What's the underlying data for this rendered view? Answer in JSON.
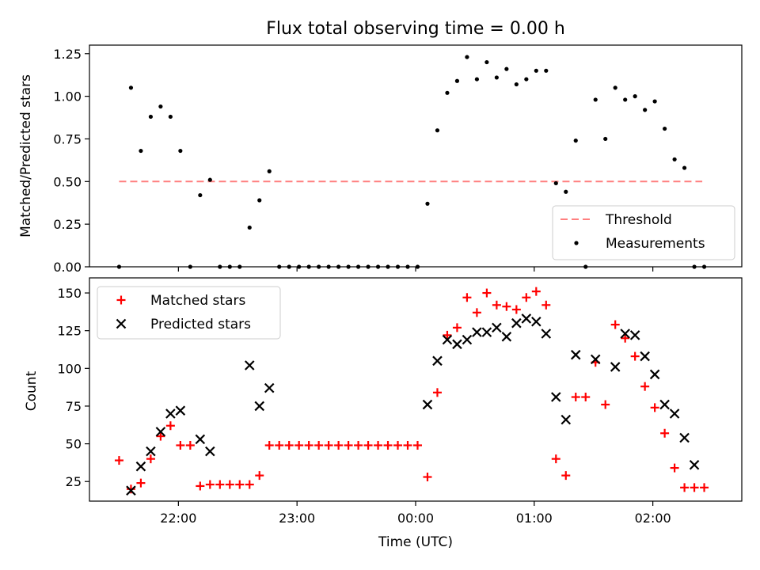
{
  "figure": {
    "title": "Flux total observing time = 0.00 h"
  },
  "chart_data": [
    {
      "type": "scatter",
      "ylabel": "Matched/Predicted stars",
      "ylim": [
        0,
        1.3
      ],
      "xlim_hours": [
        21.25,
        2.75
      ],
      "yticks": [
        {
          "v": 0,
          "label": "0.00"
        },
        {
          "v": 0.25,
          "label": "0.25"
        },
        {
          "v": 0.5,
          "label": "0.50"
        },
        {
          "v": 0.75,
          "label": "0.75"
        },
        {
          "v": 1.0,
          "label": "1.00"
        },
        {
          "v": 1.25,
          "label": "1.25"
        }
      ],
      "threshold": {
        "name": "Threshold",
        "value": 0.5,
        "x_start": "21:30",
        "x_end": "02:25",
        "color": "#ff7f7f"
      },
      "measurements": {
        "name": "Measurements",
        "color": "#000000",
        "x": [
          "21:30",
          "21:36",
          "21:41",
          "21:46",
          "21:51",
          "21:56",
          "22:01",
          "22:06",
          "22:11",
          "22:16",
          "22:21",
          "22:26",
          "22:31",
          "22:36",
          "22:41",
          "22:46",
          "22:51",
          "22:56",
          "23:01",
          "23:06",
          "23:11",
          "23:16",
          "23:21",
          "23:26",
          "23:31",
          "23:36",
          "23:41",
          "23:46",
          "23:51",
          "23:56",
          "00:01",
          "00:06",
          "00:11",
          "00:16",
          "00:21",
          "00:26",
          "00:31",
          "00:36",
          "00:41",
          "00:46",
          "00:51",
          "00:56",
          "01:01",
          "01:06",
          "01:11",
          "01:16",
          "01:21",
          "01:26",
          "01:31",
          "01:36",
          "01:41",
          "01:46",
          "01:51",
          "01:56",
          "02:01",
          "02:06",
          "02:11",
          "02:16",
          "02:21",
          "02:26"
        ],
        "y": [
          0.0,
          1.05,
          0.68,
          0.88,
          0.94,
          0.88,
          0.68,
          0.0,
          0.42,
          0.51,
          0.0,
          0.0,
          0.0,
          0.23,
          0.39,
          0.56,
          0.0,
          0.0,
          0.0,
          0.0,
          0.0,
          0.0,
          0.0,
          0.0,
          0.0,
          0.0,
          0.0,
          0.0,
          0.0,
          0.0,
          0.0,
          0.37,
          0.8,
          1.02,
          1.09,
          1.23,
          1.1,
          1.2,
          1.11,
          1.16,
          1.07,
          1.1,
          1.15,
          1.15,
          0.49,
          0.44,
          0.74,
          0.0,
          0.98,
          0.75,
          1.05,
          0.98,
          1.0,
          0.92,
          0.97,
          0.81,
          0.63,
          0.58,
          0.0,
          0.0
        ]
      },
      "legend": {
        "placement": "lower-right"
      }
    },
    {
      "type": "scatter",
      "xlabel": "Time (UTC)",
      "ylabel": "Count",
      "ylim": [
        12,
        160
      ],
      "xlim_hours": [
        21.25,
        2.75
      ],
      "yticks": [
        {
          "v": 25,
          "label": "25"
        },
        {
          "v": 50,
          "label": "50"
        },
        {
          "v": 75,
          "label": "75"
        },
        {
          "v": 100,
          "label": "100"
        },
        {
          "v": 125,
          "label": "125"
        },
        {
          "v": 150,
          "label": "150"
        }
      ],
      "xticks": [
        {
          "t": "22:00",
          "label": "22:00"
        },
        {
          "t": "23:00",
          "label": "23:00"
        },
        {
          "t": "00:00",
          "label": "00:00"
        },
        {
          "t": "01:00",
          "label": "01:00"
        },
        {
          "t": "02:00",
          "label": "02:00"
        }
      ],
      "series": [
        {
          "name": "Matched stars",
          "marker": "plus",
          "color": "#ff0000",
          "x": [
            "21:30",
            "21:36",
            "21:41",
            "21:46",
            "21:51",
            "21:56",
            "22:01",
            "22:06",
            "22:11",
            "22:16",
            "22:21",
            "22:26",
            "22:31",
            "22:36",
            "22:41",
            "22:46",
            "22:51",
            "22:56",
            "23:01",
            "23:06",
            "23:11",
            "23:16",
            "23:21",
            "23:26",
            "23:31",
            "23:36",
            "23:41",
            "23:46",
            "23:51",
            "23:56",
            "00:01",
            "00:06",
            "00:11",
            "00:16",
            "00:21",
            "00:26",
            "00:31",
            "00:36",
            "00:41",
            "00:46",
            "00:51",
            "00:56",
            "01:01",
            "01:06",
            "01:11",
            "01:16",
            "01:21",
            "01:26",
            "01:31",
            "01:36",
            "01:41",
            "01:46",
            "01:51",
            "01:56",
            "02:01",
            "02:06",
            "02:11",
            "02:16",
            "02:21",
            "02:26"
          ],
          "y": [
            39,
            20,
            24,
            40,
            55,
            62,
            49,
            49,
            22,
            23,
            23,
            23,
            23,
            23,
            29,
            49,
            49,
            49,
            49,
            49,
            49,
            49,
            49,
            49,
            49,
            49,
            49,
            49,
            49,
            49,
            49,
            28,
            84,
            122,
            127,
            147,
            137,
            150,
            142,
            141,
            139,
            147,
            151,
            142,
            40,
            29,
            81,
            81,
            104,
            76,
            129,
            120,
            108,
            88,
            74,
            57,
            34,
            21,
            21,
            21
          ]
        },
        {
          "name": "Predicted stars",
          "marker": "cross",
          "color": "#000000",
          "x": [
            "21:36",
            "21:41",
            "21:46",
            "21:51",
            "21:56",
            "22:01",
            "22:11",
            "22:16",
            "22:36",
            "22:41",
            "22:46",
            "00:06",
            "00:11",
            "00:16",
            "00:21",
            "00:26",
            "00:31",
            "00:36",
            "00:41",
            "00:46",
            "00:51",
            "00:56",
            "01:01",
            "01:06",
            "01:11",
            "01:16",
            "01:21",
            "01:31",
            "01:41",
            "01:46",
            "01:51",
            "01:56",
            "02:01",
            "02:06",
            "02:11",
            "02:16",
            "02:21"
          ],
          "y": [
            19,
            35,
            45,
            58,
            70,
            72,
            53,
            45,
            102,
            75,
            87,
            76,
            105,
            119,
            116,
            119,
            124,
            124,
            127,
            121,
            130,
            133,
            131,
            123,
            81,
            66,
            109,
            106,
            101,
            123,
            122,
            108,
            96,
            76,
            70,
            54,
            36
          ]
        }
      ],
      "legend": {
        "placement": "upper-left"
      }
    }
  ]
}
